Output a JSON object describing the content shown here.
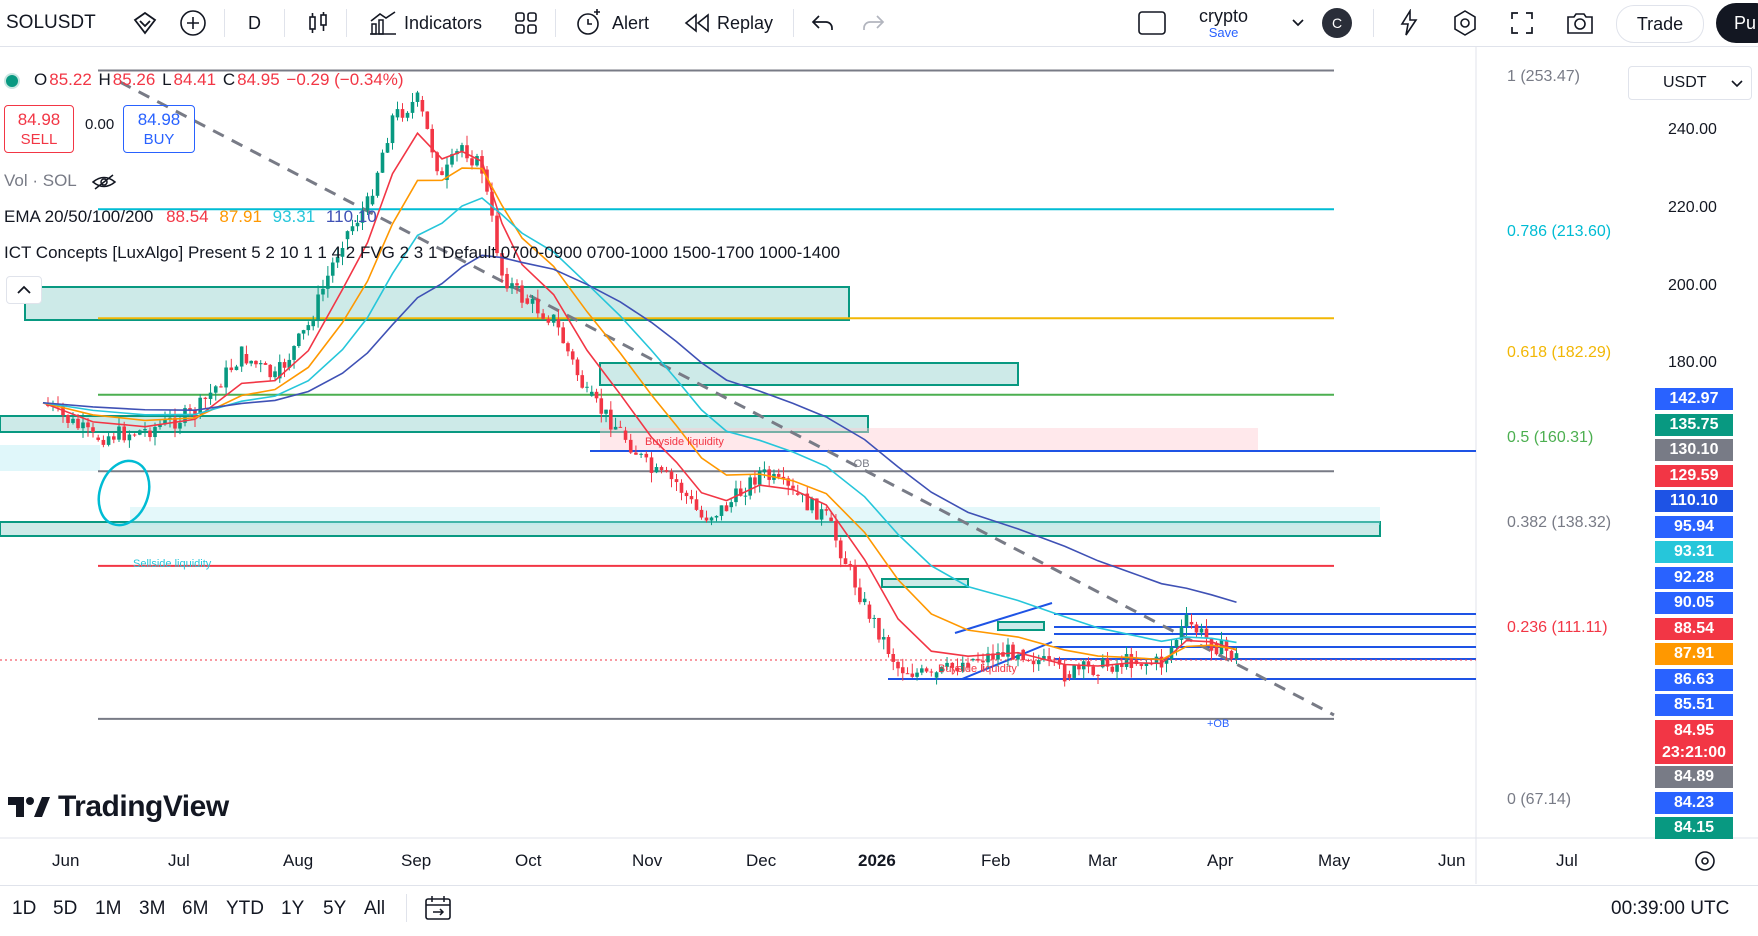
{
  "toolbar": {
    "symbol": "SOLUSDT",
    "interval": "D",
    "indicators_label": "Indicators",
    "alert_label": "Alert",
    "replay_label": "Replay",
    "layout_name": "crypto",
    "layout_save": "Save",
    "avatar_letter": "C",
    "trade_label": "Trade",
    "publish_label": "Pu"
  },
  "legend": {
    "open_label": "O",
    "open": "85.22",
    "high_label": "H",
    "high": "85.26",
    "low_label": "L",
    "low": "84.41",
    "close_label": "C",
    "close": "84.95",
    "change": "−0.29 (−0.34%)",
    "sell_price": "84.98",
    "sell_label": "SELL",
    "spread": "0.00",
    "buy_price": "84.98",
    "buy_label": "BUY",
    "vol_label": "Vol · SOL",
    "ema_label": "EMA 20/50/100/200",
    "ema20": "88.54",
    "ema50": "87.91",
    "ema100": "93.31",
    "ema200": "110.10",
    "ict_label": "ICT Concepts [LuxAlgo] Present 5 2 10 1 1 4 2 FVG 2 3 1 Default 0700-0900 0700-1000 1500-1700 1000-1400"
  },
  "currency": "USDT",
  "colors": {
    "up": "#089981",
    "down": "#f23645",
    "ema20": "#f23645",
    "ema50": "#ff9800",
    "ema100": "#26c6da",
    "ema200": "#3f51b5",
    "ob_fill": "#b2dfdb",
    "ob_border": "#089981",
    "blue_line": "#1e53e5",
    "gray": "#787b86"
  },
  "chart_data": {
    "type": "candlestick",
    "symbol": "SOLUSDT",
    "interval": "D",
    "y_axis": {
      "min": 60,
      "max": 257,
      "ticks": [
        "240.00",
        "220.00",
        "200.00",
        "180.00"
      ]
    },
    "x_axis": {
      "ticks": [
        "Jun",
        "Jul",
        "Aug",
        "Sep",
        "Oct",
        "Nov",
        "Dec",
        "2026",
        "Feb",
        "Mar",
        "Apr",
        "May",
        "Jun",
        "Jul"
      ]
    },
    "price_path": [
      [
        "Jun",
        158
      ],
      [
        "Jun",
        148
      ],
      [
        "Jul",
        150
      ],
      [
        "Jul",
        155
      ],
      [
        "Aug",
        172
      ],
      [
        "Aug",
        165
      ],
      [
        "Aug",
        180
      ],
      [
        "Sep",
        205
      ],
      [
        "Sep",
        215
      ],
      [
        "Sep",
        240
      ],
      [
        "Sep",
        245
      ],
      [
        "Oct",
        222
      ],
      [
        "Oct",
        232
      ],
      [
        "Oct",
        225
      ],
      [
        "Oct",
        195
      ],
      [
        "Oct",
        188
      ],
      [
        "Nov",
        182
      ],
      [
        "Nov",
        160
      ],
      [
        "Nov",
        150
      ],
      [
        "Dec",
        138
      ],
      [
        "Dec",
        135
      ],
      [
        "Dec",
        125
      ],
      [
        "Dec",
        128
      ],
      [
        "2026",
        138
      ],
      [
        "2026",
        132
      ],
      [
        "2026",
        125
      ],
      [
        "Feb",
        100
      ],
      [
        "Feb",
        82
      ],
      [
        "Feb",
        79
      ],
      [
        "Mar",
        84
      ],
      [
        "Mar",
        87
      ],
      [
        "Apr",
        80
      ],
      [
        "Apr",
        82
      ],
      [
        "Apr",
        84
      ],
      [
        "May",
        83
      ],
      [
        "May",
        95
      ],
      [
        "May",
        89
      ],
      [
        "May",
        84.95
      ]
    ],
    "emas": [
      {
        "name": "EMA 20",
        "value": 88.54
      },
      {
        "name": "EMA 50",
        "value": 87.91
      },
      {
        "name": "EMA 100",
        "value": 93.31
      },
      {
        "name": "EMA 200",
        "value": 110.1
      }
    ],
    "fib_levels": [
      {
        "label": "1 (253.47)",
        "value": 253.47
      },
      {
        "label": "0.786 (213.60)",
        "value": 213.6
      },
      {
        "label": "0.618 (182.29)",
        "value": 182.29
      },
      {
        "label": "0.5 (160.31)",
        "value": 160.31
      },
      {
        "label": "0.382 (138.32)",
        "value": 138.32
      },
      {
        "label": "0.236 (111.11)",
        "value": 111.11
      },
      {
        "label": "0 (67.14)",
        "value": 67.14
      }
    ],
    "price_labels": [
      {
        "text": "142.97",
        "color": "#2962ff"
      },
      {
        "text": "135.75",
        "color": "#089981"
      },
      {
        "text": "130.10",
        "color": "#787b86"
      },
      {
        "text": "129.59",
        "color": "#f23645"
      },
      {
        "text": "110.10",
        "color": "#1e53e5"
      },
      {
        "text": "95.94",
        "color": "#2962ff"
      },
      {
        "text": "93.31",
        "color": "#26c6da"
      },
      {
        "text": "92.28",
        "color": "#2962ff"
      },
      {
        "text": "90.05",
        "color": "#2962ff"
      },
      {
        "text": "88.54",
        "color": "#f23645"
      },
      {
        "text": "87.91",
        "color": "#ff9800"
      },
      {
        "text": "86.63",
        "color": "#2962ff"
      },
      {
        "text": "85.51",
        "color": "#2962ff"
      },
      {
        "text": "84.95",
        "color": "#f23645"
      },
      {
        "text": "23:21:00",
        "color": "#f23645"
      },
      {
        "text": "84.89",
        "color": "#787b86"
      },
      {
        "text": "84.23",
        "color": "#2962ff"
      },
      {
        "text": "84.15",
        "color": "#089981"
      }
    ],
    "last_price": 84.95,
    "countdown": "23:21:00",
    "annotations": [
      "Buyside liquidity",
      "Sellside liquidity",
      "-OB",
      "+OB",
      "Buyside liquidity"
    ],
    "grid": false
  },
  "footer": {
    "ranges": [
      "1D",
      "5D",
      "1M",
      "3M",
      "6M",
      "YTD",
      "1Y",
      "5Y",
      "All"
    ],
    "clock": "00:39:00 UTC"
  },
  "branding": {
    "logo_text": "TradingView"
  }
}
